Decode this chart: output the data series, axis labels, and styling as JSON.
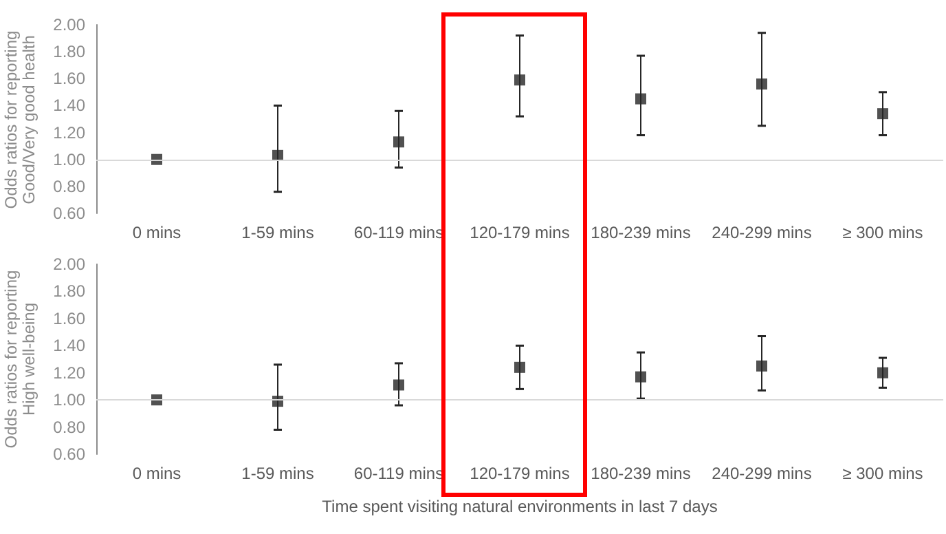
{
  "chart_data": [
    {
      "type": "scatter",
      "ylabel": "Odds ratios for reporting Good/Very good health",
      "categories": [
        "0 mins",
        "1-59 mins",
        "60-119 mins",
        "120-179 mins",
        "180-239 mins",
        "240-299 mins",
        "≥ 300 mins"
      ],
      "values": [
        1.0,
        1.03,
        1.13,
        1.59,
        1.45,
        1.56,
        1.34
      ],
      "errors": [
        null,
        [
          0.76,
          1.4
        ],
        [
          0.94,
          1.36
        ],
        [
          1.32,
          1.92
        ],
        [
          1.18,
          1.77
        ],
        [
          1.25,
          1.94
        ],
        [
          1.18,
          1.5
        ]
      ],
      "color": "#262626",
      "marker": "square",
      "ylim": [
        0.6,
        2.0
      ],
      "yticks": [
        {
          "value": 0.6,
          "label": "0.60"
        },
        {
          "value": 0.8,
          "label": "0.80"
        },
        {
          "value": 1.0,
          "label": "1.00"
        },
        {
          "value": 1.2,
          "label": "1.20"
        },
        {
          "value": 1.4,
          "label": "1.40"
        },
        {
          "value": 1.6,
          "label": "1.60"
        },
        {
          "value": 1.8,
          "label": "1.80"
        },
        {
          "value": 2.0,
          "label": "2.00"
        }
      ],
      "ref_lines": [
        {
          "axis": "y",
          "value": 1.0,
          "color": "#d9d9d9"
        }
      ],
      "grid": false
    },
    {
      "type": "scatter",
      "ylabel": "Odds ratios for reporting High well-being",
      "xlabel": "Time spent visiting natural environments in last 7 days",
      "categories": [
        "0 mins",
        "1-59 mins",
        "60-119 mins",
        "120-179 mins",
        "180-239 mins",
        "240-299 mins",
        "≥ 300 mins"
      ],
      "values": [
        1.0,
        0.99,
        1.11,
        1.24,
        1.17,
        1.25,
        1.2
      ],
      "errors": [
        null,
        [
          0.78,
          1.26
        ],
        [
          0.96,
          1.27
        ],
        [
          1.08,
          1.4
        ],
        [
          1.01,
          1.35
        ],
        [
          1.07,
          1.47
        ],
        [
          1.09,
          1.31
        ]
      ],
      "color": "#262626",
      "marker": "square",
      "ylim": [
        0.6,
        2.0
      ],
      "yticks": [
        {
          "value": 0.6,
          "label": "0.60"
        },
        {
          "value": 0.8,
          "label": "0.80"
        },
        {
          "value": 1.0,
          "label": "1.00"
        },
        {
          "value": 1.2,
          "label": "1.20"
        },
        {
          "value": 1.4,
          "label": "1.40"
        },
        {
          "value": 1.6,
          "label": "1.60"
        },
        {
          "value": 1.8,
          "label": "1.80"
        },
        {
          "value": 2.0,
          "label": "2.00"
        }
      ],
      "ref_lines": [
        {
          "axis": "y",
          "value": 1.0,
          "color": "#d9d9d9"
        }
      ],
      "grid": false
    }
  ]
}
